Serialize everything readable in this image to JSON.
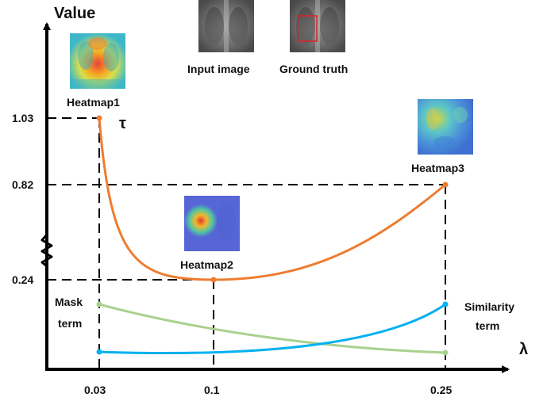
{
  "axes": {
    "y_title": "Value",
    "x_title": "λ",
    "x_ticks": [
      "0.03",
      "0.1",
      "0.25"
    ],
    "y_ticks": [
      "1.03",
      "0.82",
      "0.24"
    ]
  },
  "curve_label": "τ",
  "images": {
    "input_label": "Input image",
    "truth_label": "Ground truth",
    "heatmap1_label": "Heatmap1",
    "heatmap2_label": "Heatmap2",
    "heatmap3_label": "Heatmap3"
  },
  "terms": {
    "mask_line1": "Mask",
    "mask_line2": "term",
    "similarity_line1": "Similarity",
    "similarity_line2": "term"
  },
  "colors": {
    "tau_curve": "#ED7D31",
    "mask_curve": "#A9D18E",
    "similarity_curve": "#00B0F0",
    "axis": "#000000",
    "truth_box": "#E02020"
  },
  "key_points": [
    {
      "lambda": "0.03",
      "tau": "1.03"
    },
    {
      "lambda": "0.1",
      "tau": "0.24"
    },
    {
      "lambda": "0.25",
      "tau": "0.82"
    }
  ]
}
